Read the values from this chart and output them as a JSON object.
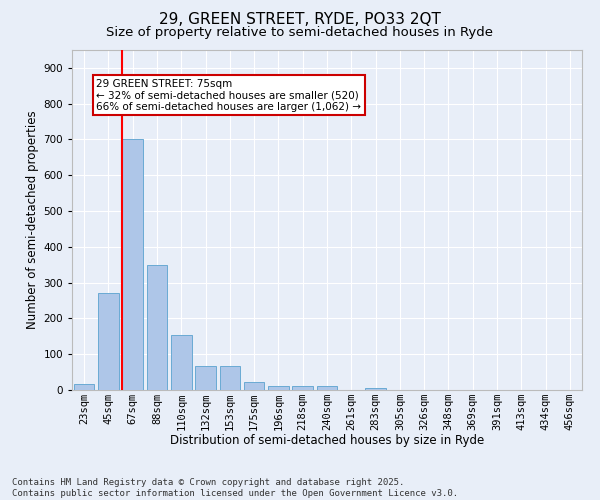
{
  "title": "29, GREEN STREET, RYDE, PO33 2QT",
  "subtitle": "Size of property relative to semi-detached houses in Ryde",
  "xlabel": "Distribution of semi-detached houses by size in Ryde",
  "ylabel": "Number of semi-detached properties",
  "categories": [
    "23sqm",
    "45sqm",
    "67sqm",
    "88sqm",
    "110sqm",
    "132sqm",
    "153sqm",
    "175sqm",
    "196sqm",
    "218sqm",
    "240sqm",
    "261sqm",
    "283sqm",
    "305sqm",
    "326sqm",
    "348sqm",
    "369sqm",
    "391sqm",
    "413sqm",
    "434sqm",
    "456sqm"
  ],
  "values": [
    18,
    270,
    700,
    350,
    155,
    68,
    68,
    22,
    12,
    12,
    10,
    0,
    5,
    0,
    0,
    0,
    0,
    0,
    0,
    0,
    0
  ],
  "bar_color": "#aec6e8",
  "bar_edge_color": "#6aaad4",
  "red_line_index": 2,
  "annotation_text": "29 GREEN STREET: 75sqm\n← 32% of semi-detached houses are smaller (520)\n66% of semi-detached houses are larger (1,062) →",
  "annotation_box_facecolor": "#ffffff",
  "annotation_box_edgecolor": "#cc0000",
  "background_color": "#e8eef8",
  "grid_color": "#ffffff",
  "footer_text": "Contains HM Land Registry data © Crown copyright and database right 2025.\nContains public sector information licensed under the Open Government Licence v3.0.",
  "ylim": [
    0,
    950
  ],
  "yticks": [
    0,
    100,
    200,
    300,
    400,
    500,
    600,
    700,
    800,
    900
  ],
  "title_fontsize": 11,
  "subtitle_fontsize": 9.5,
  "axis_label_fontsize": 8.5,
  "tick_fontsize": 7.5,
  "footer_fontsize": 6.5,
  "annotation_fontsize": 7.5,
  "figwidth": 6.0,
  "figheight": 5.0,
  "dpi": 100
}
